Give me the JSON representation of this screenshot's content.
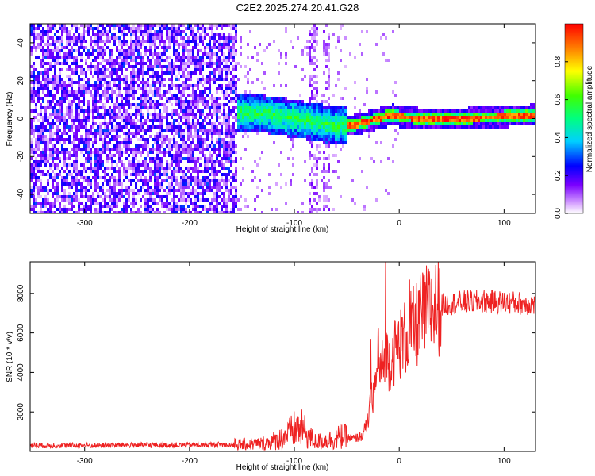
{
  "title": "C2E2.2025.274.20.41.G28",
  "colors": {
    "snr_line": "#ee2222",
    "frame": "#000000"
  },
  "chart_data": [
    {
      "type": "heatmap",
      "name": "spectrogram",
      "xlabel": "Height of straight line (km)",
      "ylabel": "Frequency (Hz)",
      "xlim": [
        -352,
        130
      ],
      "ylim": [
        -50,
        50
      ],
      "xticks": [
        -300,
        -200,
        -100,
        0,
        100
      ],
      "yticks": [
        -40,
        -20,
        0,
        20,
        40
      ],
      "xtick_labels": [
        "-300",
        "-200",
        "-100",
        "0",
        "100"
      ],
      "ytick_labels": [
        "-40",
        "-20",
        "0",
        "20",
        "40"
      ],
      "colorbar": {
        "label": "Normalized spectral amplitude",
        "range": [
          0,
          1
        ],
        "ticks": [
          0.0,
          0.2,
          0.4,
          0.6,
          0.8
        ],
        "tick_labels": [
          "0.0",
          "0.2",
          "0.4",
          "0.6",
          "0.8"
        ]
      },
      "description_regions": [
        {
          "x_range": [
            -352,
            -155
          ],
          "freq_range": [
            -50,
            50
          ],
          "amplitude": "scattered 0.05-0.25 noise"
        },
        {
          "x_range": [
            -150,
            -50
          ],
          "freq_range": [
            -12,
            12
          ],
          "amplitude": "0.3-0.5 broad return"
        },
        {
          "x_range": [
            -50,
            130
          ],
          "freq_range": [
            -2,
            3
          ],
          "amplitude": "0.8-1.0 narrow line"
        }
      ],
      "peak_line": [
        {
          "x": -140,
          "f": 3
        },
        {
          "x": -120,
          "f": 2
        },
        {
          "x": -100,
          "f": 0
        },
        {
          "x": -80,
          "f": -2
        },
        {
          "x": -60,
          "f": -4
        },
        {
          "x": -40,
          "f": -3
        },
        {
          "x": -20,
          "f": 0
        },
        {
          "x": -5,
          "f": 2
        },
        {
          "x": 0,
          "f": 1
        },
        {
          "x": 20,
          "f": 0
        },
        {
          "x": 60,
          "f": 0
        },
        {
          "x": 100,
          "f": 1
        },
        {
          "x": 130,
          "f": 2
        }
      ]
    },
    {
      "type": "line",
      "name": "snr",
      "xlabel": "Height of straight line (km)",
      "ylabel": "SNR (10 * v/v)",
      "xlim": [
        -352,
        130
      ],
      "ylim": [
        0,
        9600
      ],
      "xticks": [
        -300,
        -200,
        -100,
        0,
        100
      ],
      "yticks": [
        2000,
        4000,
        6000,
        8000
      ],
      "xtick_labels": [
        "-300",
        "-200",
        "-100",
        "0",
        "100"
      ],
      "ytick_labels": [
        "2000",
        "4000",
        "6000",
        "8000"
      ],
      "series": [
        {
          "name": "SNR",
          "x": [
            -352,
            -300,
            -250,
            -200,
            -170,
            -150,
            -130,
            -115,
            -105,
            -100,
            -95,
            -90,
            -85,
            -80,
            -75,
            -70,
            -65,
            -60,
            -55,
            -50,
            -45,
            -40,
            -35,
            -30,
            -27,
            -25,
            -20,
            -15,
            -12,
            -10,
            -5,
            0,
            5,
            10,
            15,
            20,
            25,
            30,
            40,
            50,
            60,
            80,
            100,
            120,
            130
          ],
          "y": [
            300,
            300,
            320,
            320,
            340,
            350,
            400,
            600,
            900,
            1100,
            1200,
            1000,
            700,
            500,
            500,
            550,
            600,
            650,
            800,
            700,
            650,
            700,
            800,
            1500,
            2400,
            3000,
            3800,
            4400,
            4800,
            4600,
            5000,
            5400,
            5700,
            6000,
            6300,
            6700,
            7000,
            7200,
            7400,
            7500,
            7550,
            7600,
            7550,
            7500,
            7450
          ]
        }
      ],
      "spikes": [
        {
          "x": -13,
          "y": 9600
        },
        {
          "x": -20,
          "y": 6200
        },
        {
          "x": 10,
          "y": 8700
        },
        {
          "x": -27,
          "y": 5700
        }
      ]
    }
  ]
}
